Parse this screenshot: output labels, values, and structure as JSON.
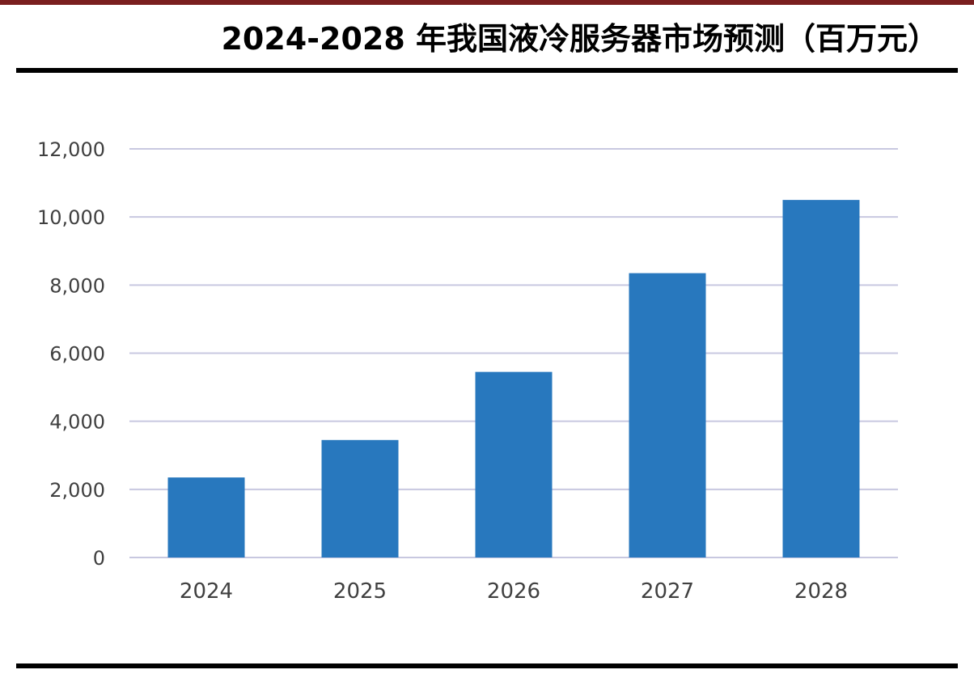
{
  "page": {
    "title": "2024-2028 年我国液冷服务器市场预测（百万元）"
  },
  "colors": {
    "bar": "#2878be",
    "grid": "#c8c8e0",
    "title_accent": "#7a1f1f"
  },
  "chart_data": {
    "type": "bar",
    "title": "",
    "xlabel": "",
    "ylabel": "",
    "categories": [
      "2024",
      "2025",
      "2026",
      "2027",
      "2028"
    ],
    "values": [
      2350,
      3450,
      5450,
      8350,
      10500
    ],
    "ylim": [
      0,
      12000
    ],
    "yticks": [
      0,
      2000,
      4000,
      6000,
      8000,
      10000,
      12000
    ],
    "ytick_labels": [
      "0",
      "2,000",
      "4,000",
      "6,000",
      "8,000",
      "10,000",
      "12,000"
    ],
    "grid": true,
    "legend": "none"
  }
}
